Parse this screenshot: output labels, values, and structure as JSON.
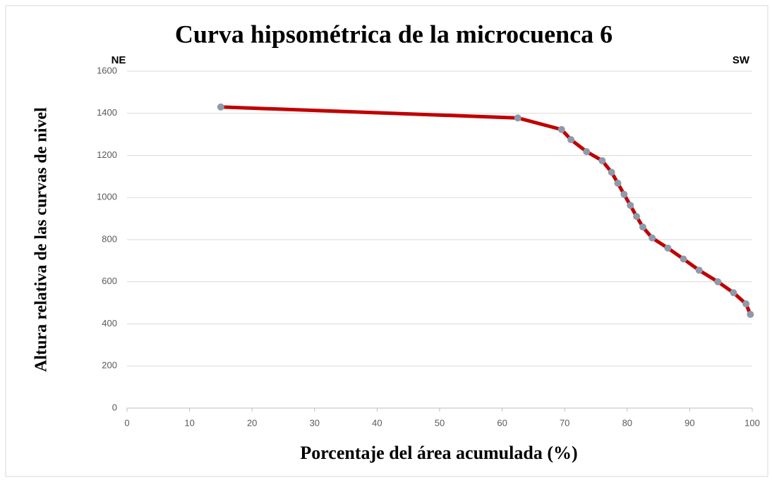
{
  "chart_data": {
    "type": "line",
    "title": "Curva hipsométrica de la microcuenca 6",
    "annotations": [
      "NE",
      "SW"
    ],
    "xlabel": "Porcentaje del área acumulada (%)",
    "ylabel": "Altura relativa de las curvas de nivel",
    "x": [
      15,
      62.5,
      69.5,
      71,
      73.5,
      76,
      77.5,
      78.5,
      79.5,
      80.5,
      81.5,
      82.5,
      84,
      86.5,
      89,
      91.5,
      94.5,
      97,
      99,
      99.7
    ],
    "values": [
      1430,
      1378,
      1323,
      1275,
      1218,
      1175,
      1120,
      1068,
      1015,
      963,
      910,
      860,
      808,
      760,
      708,
      655,
      600,
      548,
      495,
      445
    ],
    "color": "#c00000",
    "marker_color": "#8e9aab",
    "xlim": [
      0,
      100
    ],
    "xticks": [
      0,
      10,
      20,
      30,
      40,
      50,
      60,
      70,
      80,
      90,
      100
    ],
    "ylim": [
      0,
      1600
    ],
    "yticks": [
      0,
      200,
      400,
      600,
      800,
      1000,
      1200,
      1400,
      1600
    ],
    "grid": true
  }
}
